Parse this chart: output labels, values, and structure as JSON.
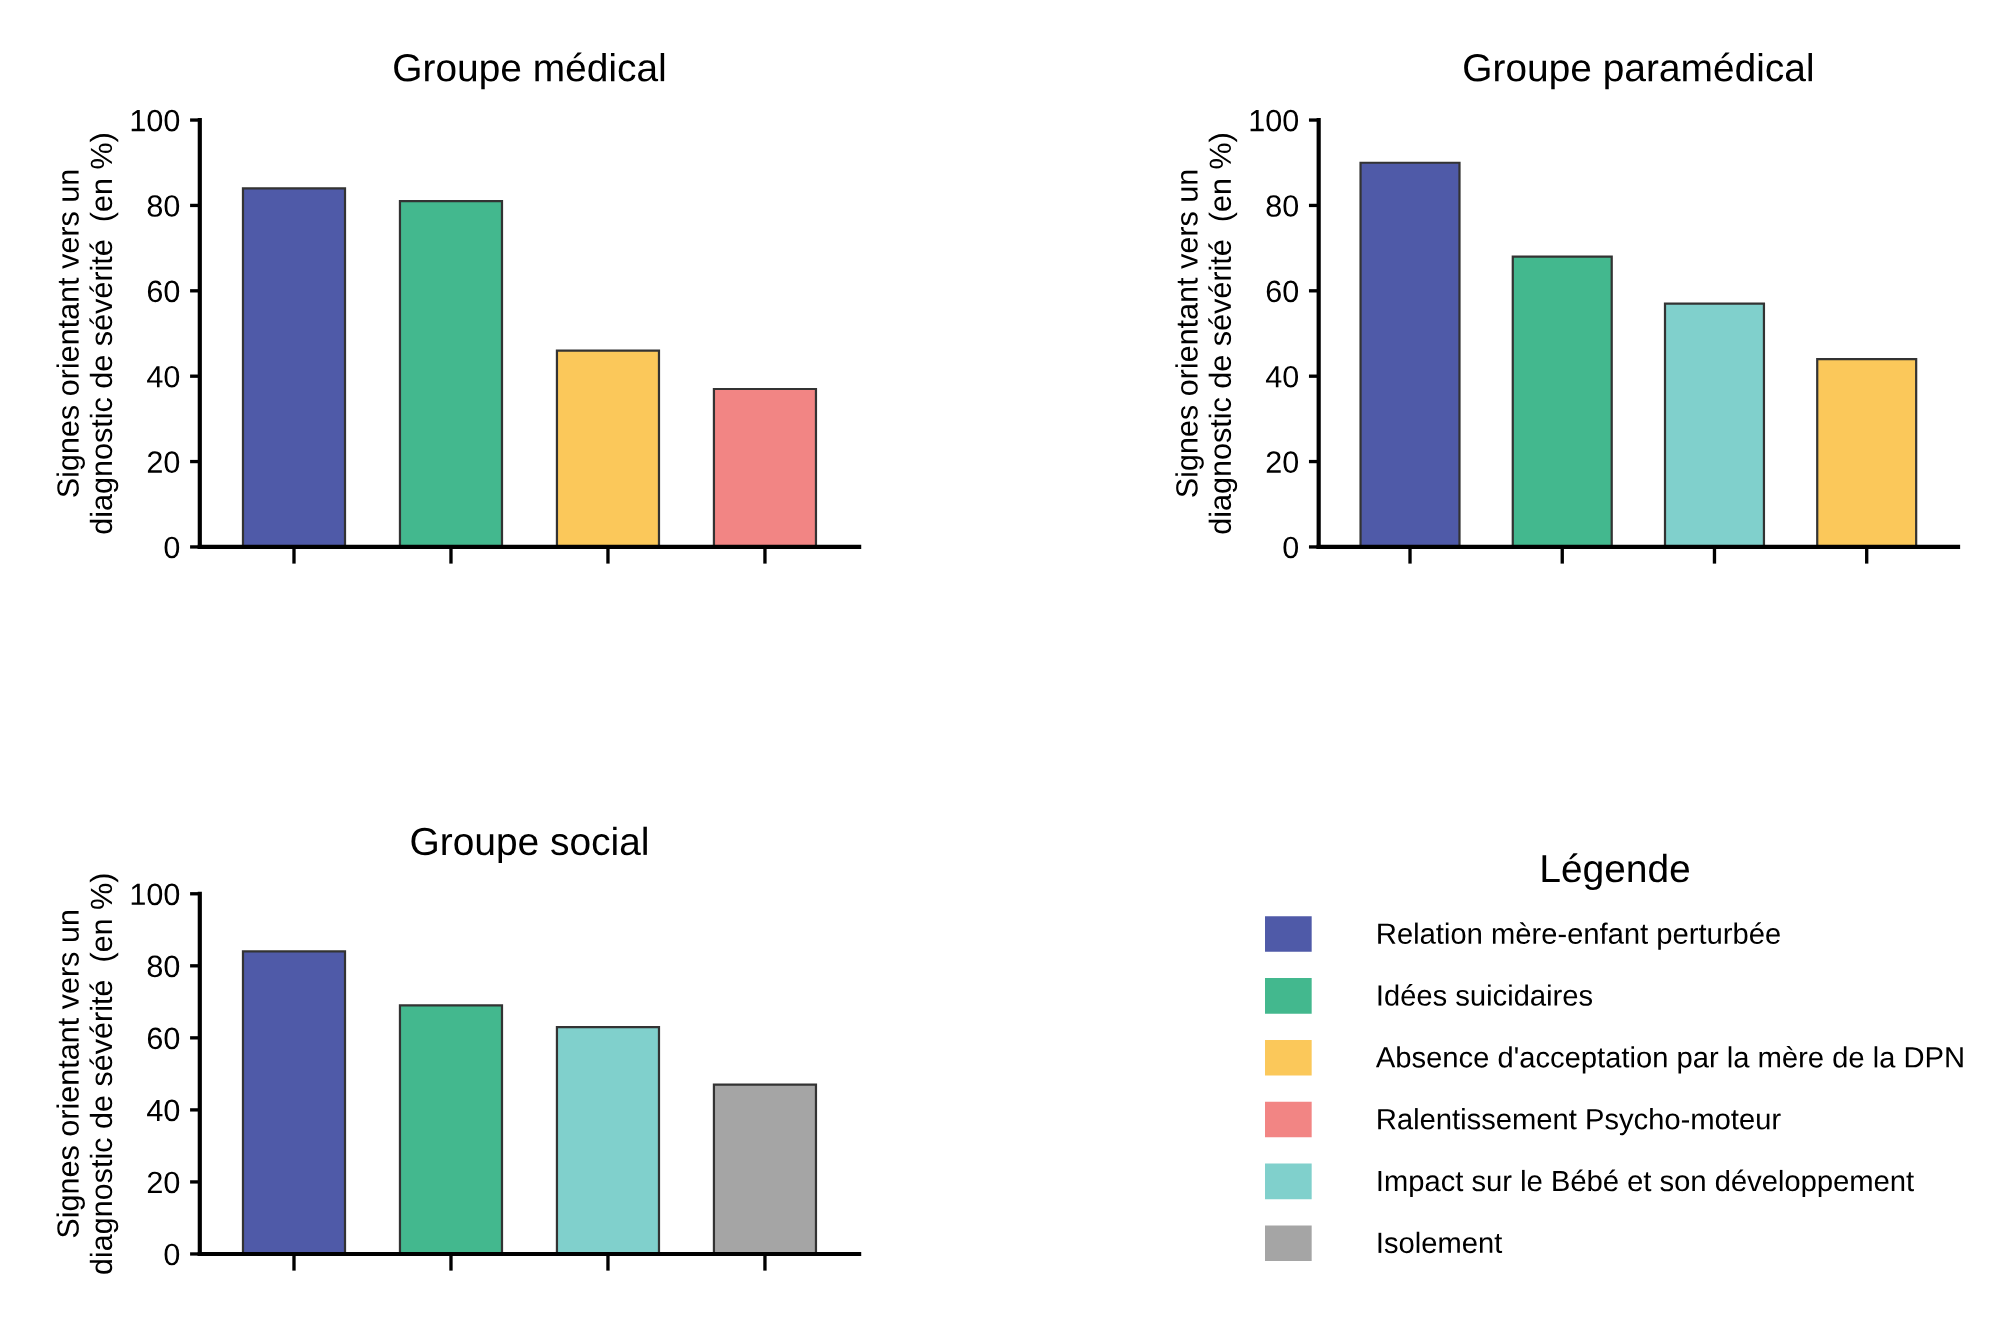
{
  "chart_data": [
    {
      "type": "bar",
      "title": "Groupe médical",
      "ylabel": "Signes orientant vers un\ndiagnostic de sévérité  (en %)",
      "categories": [
        null,
        null,
        null,
        null
      ],
      "values": [
        84,
        81,
        46,
        37
      ],
      "colors": [
        "#4f5aa8",
        "#43b88e",
        "#fbc85a",
        "#f28584"
      ],
      "ylim": [
        0,
        100
      ],
      "yticks": [
        0,
        20,
        40,
        60,
        80,
        100
      ],
      "grid": false,
      "legend": false
    },
    {
      "type": "bar",
      "title": "Groupe paramédical",
      "ylabel": "Signes orientant vers un\ndiagnostic de sévérité  (en %)",
      "categories": [
        null,
        null,
        null,
        null
      ],
      "values": [
        90,
        68,
        57,
        44
      ],
      "colors": [
        "#4f5aa8",
        "#43b88e",
        "#80d0cc",
        "#fbc85a"
      ],
      "ylim": [
        0,
        100
      ],
      "yticks": [
        0,
        20,
        40,
        60,
        80,
        100
      ],
      "grid": false,
      "legend": false
    },
    {
      "type": "bar",
      "title": "Groupe social",
      "ylabel": "Signes orientant vers un\ndiagnostic de sévérité  (en %)",
      "categories": [
        null,
        null,
        null,
        null
      ],
      "values": [
        84,
        69,
        63,
        47
      ],
      "colors": [
        "#4f5aa8",
        "#43b88e",
        "#80d0cc",
        "#a5a5a5"
      ],
      "ylim": [
        0,
        100
      ],
      "yticks": [
        0,
        20,
        40,
        60,
        80,
        100
      ],
      "grid": false,
      "legend": false
    },
    {
      "type": "other",
      "title": "Légende",
      "series": [
        {
          "name": "Relation mère-enfant perturbée",
          "color": "#4f5aa8"
        },
        {
          "name": "Idées suicidaires",
          "color": "#43b88e"
        },
        {
          "name": "Absence d'acceptation par la mère de la DPN",
          "color": "#fbc85a"
        },
        {
          "name": "Ralentissement Psycho-moteur",
          "color": "#f28584"
        },
        {
          "name": "Impact sur le Bébé et son développement",
          "color": "#80d0cc"
        },
        {
          "name": "Isolement",
          "color": "#a5a5a5"
        }
      ]
    }
  ]
}
